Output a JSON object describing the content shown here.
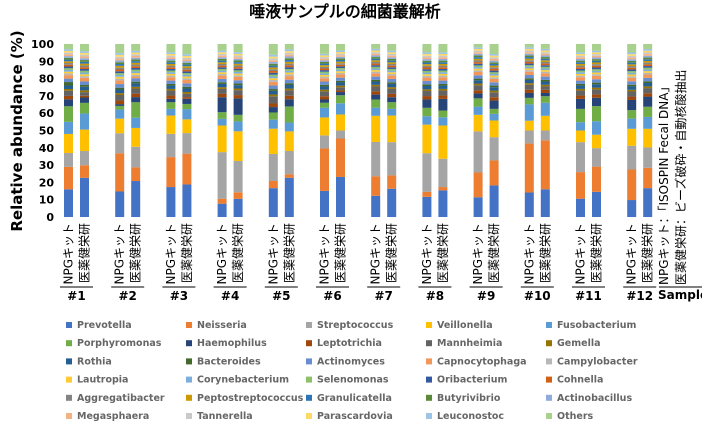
{
  "chart_data": {
    "type": "bar",
    "stacked": true,
    "title": "唾液サンプルの細菌叢解析",
    "ylabel": "Relative abundance (%)",
    "ylim": [
      0,
      100
    ],
    "yticks": [
      0,
      10,
      20,
      30,
      40,
      50,
      60,
      70,
      80,
      90,
      100
    ],
    "bar_labels": [
      "NPGキット",
      "医薬健栄研"
    ],
    "groups": [
      "#1",
      "#2",
      "#3",
      "#4",
      "#5",
      "#6",
      "#7",
      "#8",
      "#9",
      "#10",
      "#11",
      "#12"
    ],
    "xlabel": "Sample",
    "side_note": [
      "NPGキット：「ISOSPIN Fecal DNA」",
      "医薬健栄研：ビーズ破砕・自動核酸抽出"
    ],
    "series": [
      {
        "name": "Prevotella",
        "color": "#4472C4"
      },
      {
        "name": "Neisseria",
        "color": "#ED7D31"
      },
      {
        "name": "Streptococcus",
        "color": "#A5A5A5"
      },
      {
        "name": "Veillonella",
        "color": "#FFC000"
      },
      {
        "name": "Fusobacterium",
        "color": "#5B9BD5"
      },
      {
        "name": "Porphyromonas",
        "color": "#70AD47"
      },
      {
        "name": "Haemophilus",
        "color": "#264478"
      },
      {
        "name": "Leptotrichia",
        "color": "#9E480E"
      },
      {
        "name": "Mannheimia",
        "color": "#636363"
      },
      {
        "name": "Gemella",
        "color": "#997300"
      },
      {
        "name": "Rothia",
        "color": "#255E91"
      },
      {
        "name": "Bacteroides",
        "color": "#43682B"
      },
      {
        "name": "Actinomyces",
        "color": "#698ED0"
      },
      {
        "name": "Capnocytophaga",
        "color": "#F1975A"
      },
      {
        "name": "Campylobacter",
        "color": "#B7B7B7"
      },
      {
        "name": "Lautropia",
        "color": "#FFCD33"
      },
      {
        "name": "Corynebacterium",
        "color": "#7CAFDD"
      },
      {
        "name": "Selenomonas",
        "color": "#8CC168"
      },
      {
        "name": "Oribacterium",
        "color": "#335AA1"
      },
      {
        "name": "Cohnella",
        "color": "#D26012"
      },
      {
        "name": "Aggregatibacter",
        "color": "#848484"
      },
      {
        "name": "Peptostreptococcus",
        "color": "#CC9A00"
      },
      {
        "name": "Granulicatella",
        "color": "#2E75B5"
      },
      {
        "name": "Butyrivibrio",
        "color": "#5A8A39"
      },
      {
        "name": "Actinobacillus",
        "color": "#8FAADC"
      },
      {
        "name": "Megasphaera",
        "color": "#F4B183"
      },
      {
        "name": "Tannerella",
        "color": "#C9C9C9"
      },
      {
        "name": "Parascardovia",
        "color": "#FFD966"
      },
      {
        "name": "Leuconostoc",
        "color": "#9DC3E6"
      },
      {
        "name": "Others",
        "color": "#A9D18E"
      }
    ],
    "bars": [
      [
        16,
        13,
        8,
        11,
        7,
        9,
        4,
        2,
        3,
        1,
        2,
        2,
        2,
        2,
        1,
        1,
        1,
        1,
        1,
        1,
        1,
        1,
        1,
        1,
        1,
        1,
        1,
        1,
        1,
        3
      ],
      [
        22,
        7,
        8,
        12,
        9,
        6,
        3,
        1,
        2,
        1,
        2,
        1,
        2,
        2,
        1,
        1,
        1,
        1,
        1,
        1,
        1,
        1,
        1,
        1,
        1,
        1,
        1,
        1,
        1,
        4
      ],
      [
        14,
        21,
        11,
        8,
        5,
        2,
        1,
        2,
        3,
        1,
        2,
        1,
        2,
        2,
        1,
        1,
        1,
        1,
        1,
        1,
        1,
        1,
        1,
        1,
        1,
        1,
        1,
        1,
        1,
        5
      ],
      [
        21,
        8,
        12,
        11,
        6,
        9,
        3,
        2,
        3,
        1,
        2,
        1,
        2,
        1,
        1,
        1,
        1,
        1,
        1,
        1,
        1,
        1,
        1,
        1,
        1,
        1,
        1,
        1,
        1,
        4
      ],
      [
        18,
        18,
        14,
        11,
        4,
        4,
        2,
        2,
        3,
        1,
        2,
        1,
        2,
        2,
        1,
        1,
        1,
        1,
        1,
        1,
        1,
        1,
        1,
        1,
        1,
        1,
        1,
        1,
        1,
        5
      ],
      [
        19,
        18,
        12,
        8,
        6,
        3,
        3,
        1,
        2,
        1,
        2,
        1,
        2,
        2,
        1,
        1,
        1,
        1,
        1,
        1,
        1,
        1,
        1,
        1,
        1,
        1,
        1,
        1,
        1,
        6
      ],
      [
        8,
        3,
        28,
        16,
        4,
        4,
        9,
        2,
        3,
        1,
        2,
        1,
        2,
        2,
        1,
        1,
        1,
        1,
        1,
        1,
        1,
        1,
        1,
        1,
        1,
        1,
        1,
        1,
        1,
        4
      ],
      [
        11,
        4,
        19,
        18,
        6,
        4,
        10,
        2,
        3,
        1,
        2,
        1,
        2,
        2,
        1,
        1,
        1,
        1,
        1,
        1,
        1,
        1,
        1,
        1,
        1,
        1,
        1,
        1,
        1,
        5
      ],
      [
        16,
        4,
        15,
        14,
        5,
        4,
        3,
        2,
        4,
        1,
        2,
        1,
        2,
        2,
        1,
        1,
        1,
        1,
        1,
        1,
        1,
        1,
        1,
        1,
        1,
        1,
        1,
        1,
        1,
        6
      ],
      [
        22,
        2,
        13,
        11,
        5,
        9,
        4,
        2,
        3,
        1,
        2,
        1,
        2,
        2,
        1,
        1,
        1,
        1,
        1,
        1,
        1,
        1,
        1,
        1,
        1,
        1,
        1,
        1,
        1,
        3
      ],
      [
        16,
        26,
        8,
        11,
        6,
        3,
        2,
        2,
        3,
        1,
        2,
        1,
        2,
        2,
        1,
        1,
        1,
        1,
        1,
        1,
        1,
        1,
        1,
        1,
        1,
        1,
        1,
        1,
        1,
        6
      ],
      [
        25,
        24,
        5,
        10,
        7,
        5,
        2,
        1,
        2,
        1,
        2,
        1,
        2,
        2,
        1,
        1,
        1,
        1,
        1,
        1,
        1,
        1,
        1,
        1,
        1,
        1,
        1,
        1,
        1,
        4
      ],
      [
        13,
        12,
        21,
        16,
        5,
        5,
        3,
        2,
        3,
        1,
        2,
        1,
        2,
        2,
        1,
        1,
        1,
        1,
        1,
        1,
        1,
        1,
        1,
        1,
        1,
        1,
        1,
        1,
        1,
        3
      ],
      [
        17,
        8,
        20,
        16,
        4,
        4,
        3,
        2,
        3,
        1,
        2,
        1,
        2,
        2,
        1,
        1,
        1,
        1,
        1,
        1,
        1,
        1,
        1,
        1,
        1,
        1,
        1,
        1,
        1,
        4
      ],
      [
        12,
        3,
        23,
        17,
        5,
        5,
        5,
        2,
        3,
        1,
        2,
        1,
        2,
        2,
        1,
        1,
        1,
        1,
        1,
        1,
        1,
        1,
        1,
        1,
        1,
        1,
        1,
        1,
        1,
        5
      ],
      [
        16,
        2,
        17,
        20,
        5,
        4,
        7,
        2,
        3,
        1,
        2,
        1,
        2,
        2,
        1,
        1,
        1,
        1,
        1,
        1,
        1,
        1,
        1,
        1,
        1,
        1,
        1,
        1,
        1,
        5
      ],
      [
        12,
        15,
        25,
        10,
        5,
        5,
        3,
        2,
        3,
        1,
        2,
        1,
        2,
        2,
        1,
        1,
        1,
        1,
        1,
        1,
        1,
        1,
        1,
        1,
        1,
        1,
        1,
        1,
        1,
        2
      ],
      [
        19,
        15,
        14,
        10,
        4,
        3,
        5,
        2,
        3,
        1,
        2,
        1,
        2,
        2,
        1,
        1,
        1,
        1,
        1,
        1,
        1,
        1,
        1,
        1,
        1,
        1,
        1,
        1,
        1,
        6
      ],
      [
        15,
        30,
        8,
        6,
        10,
        4,
        3,
        2,
        3,
        1,
        2,
        1,
        2,
        2,
        1,
        1,
        1,
        1,
        1,
        1,
        1,
        1,
        1,
        1,
        1,
        1,
        1,
        1,
        1,
        2
      ],
      [
        17,
        30,
        6,
        9,
        8,
        4,
        2,
        2,
        2,
        1,
        2,
        1,
        2,
        2,
        1,
        1,
        1,
        1,
        1,
        1,
        1,
        1,
        1,
        1,
        1,
        1,
        1,
        1,
        1,
        3
      ],
      [
        11,
        16,
        18,
        7,
        5,
        8,
        6,
        2,
        3,
        1,
        2,
        1,
        2,
        2,
        1,
        1,
        1,
        1,
        1,
        1,
        1,
        1,
        1,
        1,
        1,
        1,
        1,
        1,
        1,
        5
      ],
      [
        15,
        15,
        11,
        8,
        8,
        9,
        5,
        2,
        3,
        1,
        2,
        1,
        2,
        2,
        1,
        1,
        1,
        1,
        1,
        1,
        1,
        1,
        1,
        1,
        1,
        1,
        1,
        1,
        1,
        4
      ],
      [
        10,
        18,
        14,
        10,
        6,
        5,
        6,
        2,
        3,
        1,
        2,
        1,
        2,
        2,
        1,
        1,
        1,
        1,
        1,
        1,
        1,
        1,
        1,
        1,
        1,
        1,
        1,
        1,
        1,
        5
      ],
      [
        17,
        12,
        12,
        11,
        7,
        6,
        6,
        2,
        3,
        1,
        2,
        1,
        2,
        2,
        1,
        1,
        1,
        1,
        1,
        1,
        1,
        1,
        1,
        1,
        1,
        1,
        1,
        1,
        1,
        3
      ]
    ]
  }
}
